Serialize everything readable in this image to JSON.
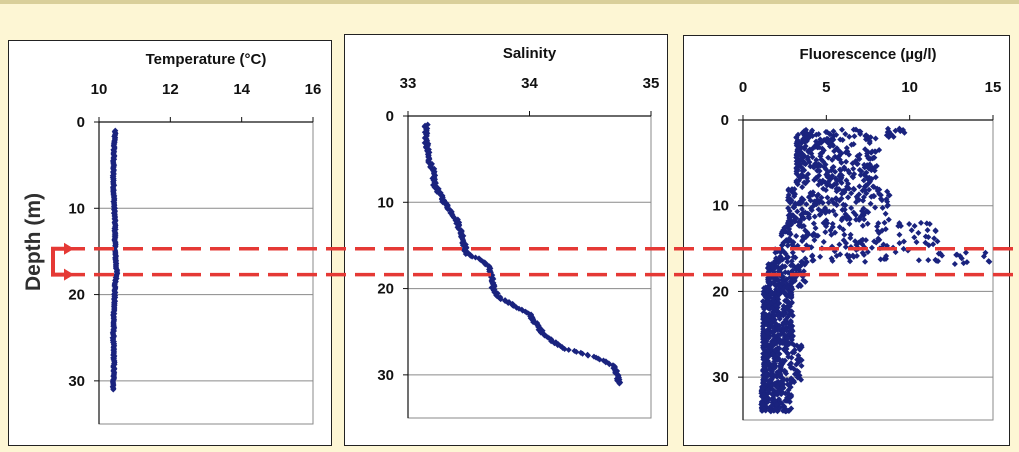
{
  "chart_data": [
    {
      "type": "scatter",
      "title": "Temperature (°C)",
      "x_ticks": [
        10,
        12,
        14,
        16
      ],
      "xlim": [
        10,
        16
      ],
      "y_ticks": [
        0,
        10,
        20,
        30
      ],
      "ylim": [
        0,
        35
      ],
      "y_inverted": true,
      "grid": "horizontal",
      "marker_color": "#1a237e",
      "profile": [
        [
          10.45,
          1
        ],
        [
          10.42,
          3
        ],
        [
          10.4,
          6
        ],
        [
          10.42,
          9
        ],
        [
          10.45,
          12
        ],
        [
          10.45,
          15
        ],
        [
          10.48,
          16.5
        ],
        [
          10.5,
          17.5
        ],
        [
          10.45,
          19
        ],
        [
          10.42,
          22
        ],
        [
          10.4,
          25
        ],
        [
          10.42,
          28
        ],
        [
          10.4,
          31
        ]
      ],
      "spread": 0.04
    },
    {
      "type": "scatter",
      "title": "Salinity",
      "x_ticks": [
        33,
        34,
        35
      ],
      "xlim": [
        33,
        35
      ],
      "y_ticks": [
        0,
        10,
        20,
        30
      ],
      "ylim": [
        0,
        35
      ],
      "y_inverted": true,
      "grid": "horizontal",
      "marker_color": "#1a237e",
      "profile": [
        [
          33.15,
          1
        ],
        [
          33.15,
          3
        ],
        [
          33.17,
          5
        ],
        [
          33.2,
          6
        ],
        [
          33.22,
          8
        ],
        [
          33.3,
          10
        ],
        [
          33.4,
          12
        ],
        [
          33.45,
          14
        ],
        [
          33.48,
          16
        ],
        [
          33.58,
          16.5
        ],
        [
          33.65,
          17.2
        ],
        [
          33.68,
          18
        ],
        [
          33.7,
          20
        ],
        [
          33.75,
          21
        ],
        [
          34.0,
          23
        ],
        [
          34.1,
          25
        ],
        [
          34.18,
          26
        ],
        [
          34.3,
          27
        ],
        [
          34.55,
          28
        ],
        [
          34.7,
          29
        ],
        [
          34.72,
          30
        ],
        [
          34.74,
          31
        ]
      ],
      "spread": 0.03
    },
    {
      "type": "scatter",
      "title": "Fluorescence (µg/l)",
      "x_ticks": [
        0,
        5,
        10,
        15
      ],
      "xlim": [
        0,
        15
      ],
      "y_ticks": [
        0,
        10,
        20,
        30
      ],
      "ylim": [
        0,
        35
      ],
      "y_inverted": true,
      "grid": "horizontal",
      "marker_color": "#1a237e",
      "regions": [
        {
          "depth": [
            1,
            2
          ],
          "x": [
            3.3,
            9.8
          ]
        },
        {
          "depth": [
            2,
            8
          ],
          "x": [
            3.2,
            8.2
          ]
        },
        {
          "depth": [
            8,
            12
          ],
          "x": [
            2.7,
            8.8
          ]
        },
        {
          "depth": [
            12,
            15
          ],
          "x": [
            2.3,
            12.0
          ]
        },
        {
          "depth": [
            15,
            16.8
          ],
          "x": [
            1.9,
            15.0
          ]
        },
        {
          "depth": [
            16.8,
            19.5
          ],
          "x": [
            1.5,
            3.8
          ]
        },
        {
          "depth": [
            19.5,
            26
          ],
          "x": [
            1.2,
            3.0
          ]
        },
        {
          "depth": [
            26,
            31
          ],
          "x": [
            1.2,
            3.6
          ]
        },
        {
          "depth": [
            31,
            34
          ],
          "x": [
            1.1,
            2.9
          ]
        }
      ]
    }
  ],
  "shared_ylabel": "Depth (m)",
  "highlight": {
    "depth_range": [
      14.8,
      17.8
    ],
    "color": "#e53935"
  }
}
